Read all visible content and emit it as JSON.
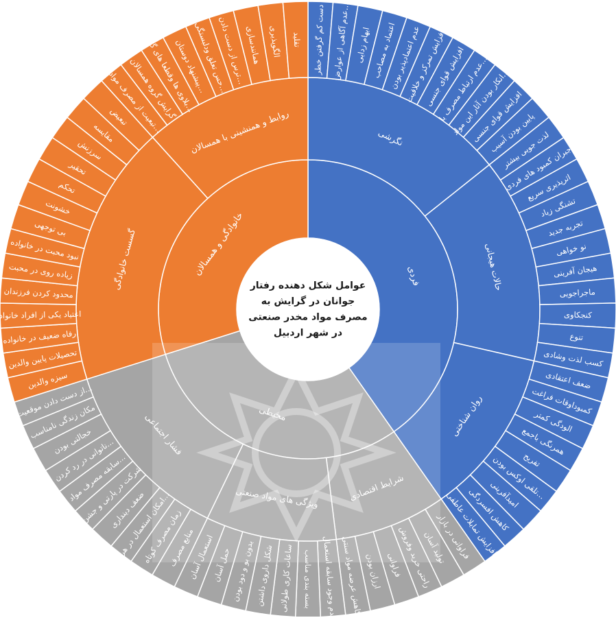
{
  "chart_data": {
    "type": "sunburst",
    "title_lines": [
      "عوامل شکل دهنده رفتار",
      "جوانان در گرایش به",
      "مصرف مواد مخدر صنعتی",
      "در شهر اردبیل"
    ],
    "colors": {
      "blue": "#4472C4",
      "orange": "#ED7D31",
      "gray": "#A5A5A5",
      "border": "#ffffff",
      "text": "#ffffff",
      "center_text": "#1a1a1a"
    },
    "root": {
      "name": "",
      "children": [
        {
          "name": "فردی",
          "color": "#4472C4",
          "children": [
            {
              "name": "نگرشی",
              "children": [
                {
                  "name": "دست کم گرفتن خطر"
                },
                {
                  "name": "عدم آگاهی از عوارض..."
                },
                {
                  "name": "ابهام زدایی"
                },
                {
                  "name": "اعتماد به مصاحب"
                },
                {
                  "name": "عدم اعتمادپذیر بودن"
                },
                {
                  "name": "افزایش تمرکز و خلاقیت"
                },
                {
                  "name": "افزایش قوای جنسی"
                },
                {
                  "name": "عدم ارتباط مصرف با..."
                },
                {
                  "name": "انکار بودن آثار این مواد..."
                },
                {
                  "name": "افزایش قوای جنسی"
                },
                {
                  "name": "پایین بودن آسیب"
                }
              ]
            },
            {
              "name": "حالات هیجانی",
              "children": [
                {
                  "name": "لذت جویی بیشتر"
                },
                {
                  "name": "جبران کمبود های فردی"
                },
                {
                  "name": "اثرپذیری سریع"
                },
                {
                  "name": "تشنگی زیاد"
                },
                {
                  "name": "تجربه جدید"
                },
                {
                  "name": "نو خواهی"
                },
                {
                  "name": "هیجان آفرینی"
                },
                {
                  "name": "ماجراجویی"
                },
                {
                  "name": "کنجکاوی"
                },
                {
                  "name": "تنوع"
                },
                {
                  "name": "کسب لذت وشادی"
                }
              ]
            },
            {
              "name": "روان شناختی",
              "children": [
                {
                  "name": "ضعف اعتقادی"
                },
                {
                  "name": "کمبوداوقات فراغت"
                },
                {
                  "name": "الودگی کمتر"
                },
                {
                  "name": "همرنگی باجمع"
                },
                {
                  "name": "تفریح"
                },
                {
                  "name": "تلقی اوکس بودن..."
                },
                {
                  "name": "امیدآفرینی"
                },
                {
                  "name": "کاهش افسردگی"
                },
                {
                  "name": "افزایش تمایلات عاطفی"
                }
              ]
            }
          ]
        },
        {
          "name": "محیطی",
          "color": "#A5A5A5",
          "children": [
            {
              "name": "شرایط اقتصادی",
              "children": [
                {
                  "name": "فراوانی در بازار"
                },
                {
                  "name": "تولید آسان"
                },
                {
                  "name": "راحتی خرید وفروش"
                },
                {
                  "name": "فراوانی"
                },
                {
                  "name": "ارزان بودن"
                },
                {
                  "name": "کاهش عرضه مواد سنتی"
                }
              ]
            },
            {
              "name": "ویژگی های مواد صنعتی",
              "children": [
                {
                  "name": "عدم وجود سابقه استعمال"
                },
                {
                  "name": "بسته بندی مناسب"
                },
                {
                  "name": "ساعات کاری طولانی"
                },
                {
                  "name": "شکل داروی داشتن"
                },
                {
                  "name": "بدون بو و دود بودن"
                },
                {
                  "name": "حمل آسان"
                },
                {
                  "name": "استعمال آسان"
                }
              ]
            },
            {
              "name": "فشار اجتماعی",
              "children": [
                {
                  "name": "منابع مصرف"
                },
                {
                  "name": "زمان مصرف کوتاه"
                },
                {
                  "name": "امکان استعمال در هر..."
                },
                {
                  "name": "ضعف دینداری"
                },
                {
                  "name": "شرکت در پارتی و جشن"
                },
                {
                  "name": "سابقه مصرف مواد..."
                },
                {
                  "name": "ناتوانی در رد کردن..."
                },
                {
                  "name": "خجالتی بودن"
                },
                {
                  "name": "مکان زندگی نامناسب"
                },
                {
                  "name": "از دست دادن موقعیت..."
                }
              ]
            }
          ]
        },
        {
          "name": "خانوادگی و همسالان",
          "color": "#ED7D31",
          "children": [
            {
              "name": "گسست خانوادگی",
              "children": [
                {
                  "name": "سیزه والدین"
                },
                {
                  "name": "تحصیلات پایین والدین"
                },
                {
                  "name": "رفاه ضعیف در خانواده"
                },
                {
                  "name": "اعتیاد یکی از افراد خانواده"
                },
                {
                  "name": "محدود کردن فرزندان"
                },
                {
                  "name": "زیاده روی در محبت"
                },
                {
                  "name": "نبود محبت در خانواده"
                },
                {
                  "name": "بی توجهی"
                },
                {
                  "name": "خشونت"
                },
                {
                  "name": "تحکم"
                },
                {
                  "name": "تحقیر"
                },
                {
                  "name": "سرزنش"
                },
                {
                  "name": "مقایسه"
                },
                {
                  "name": "تبعیض"
                }
              ]
            },
            {
              "name": "روابط و همنشینی با همسالان",
              "children": [
                {
                  "name": "تبعیت از مصرف مواد..."
                },
                {
                  "name": "گرایش گروه همسالان"
                },
                {
                  "name": "بلاوی ها وقطعا های گ..."
                },
                {
                  "name": "پیشنهاد دوستان..."
                },
                {
                  "name": "حس تعلق ودلبستگی..."
                },
                {
                  "name": "ترس از دست دادن..."
                },
                {
                  "name": "همانندسازی"
                },
                {
                  "name": "الگوپذیری"
                },
                {
                  "name": "تقلید"
                }
              ]
            }
          ]
        }
      ]
    }
  }
}
